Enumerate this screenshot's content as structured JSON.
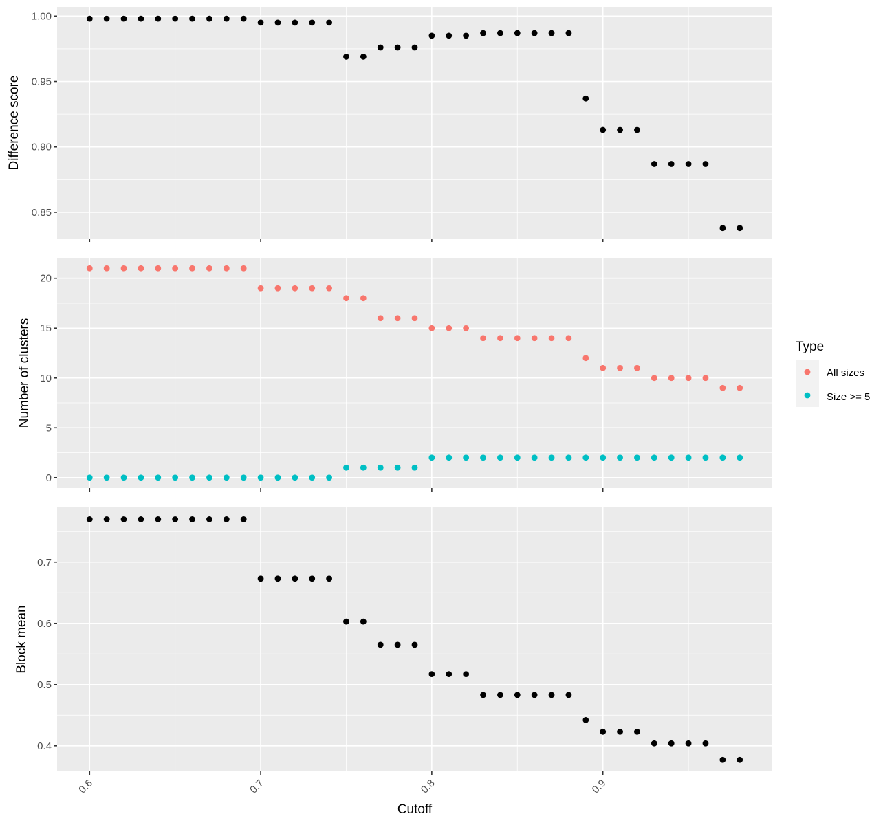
{
  "chart_data": [
    {
      "type": "scatter",
      "panel": "top",
      "ylabel": "Difference score",
      "ylim": [
        0.83,
        1.007
      ],
      "yticks": [
        0.85,
        0.9,
        0.95,
        1.0
      ],
      "ytick_labels": [
        "0.85",
        "0.90",
        "0.95",
        "1.00"
      ],
      "color": "#000000",
      "series": [
        {
          "x": [
            0.6,
            0.61,
            0.62,
            0.63,
            0.64,
            0.65,
            0.66,
            0.67,
            0.68,
            0.69,
            0.7,
            0.71,
            0.72,
            0.73,
            0.74,
            0.75,
            0.76,
            0.77,
            0.78,
            0.79,
            0.8,
            0.81,
            0.82,
            0.83,
            0.84,
            0.85,
            0.86,
            0.87,
            0.88,
            0.89,
            0.9,
            0.91,
            0.92,
            0.93,
            0.94,
            0.95,
            0.96,
            0.97,
            0.98
          ],
          "y": [
            0.998,
            0.998,
            0.998,
            0.998,
            0.998,
            0.998,
            0.998,
            0.998,
            0.998,
            0.998,
            0.995,
            0.995,
            0.995,
            0.995,
            0.995,
            0.969,
            0.969,
            0.976,
            0.976,
            0.976,
            0.985,
            0.985,
            0.985,
            0.987,
            0.987,
            0.987,
            0.987,
            0.987,
            0.987,
            0.937,
            0.913,
            0.913,
            0.913,
            0.887,
            0.887,
            0.887,
            0.887,
            0.838,
            0.838
          ]
        }
      ]
    },
    {
      "type": "scatter",
      "panel": "middle",
      "ylabel": "Number of clusters",
      "ylim": [
        -1.05,
        22.05
      ],
      "yticks": [
        0,
        5,
        10,
        15,
        20
      ],
      "ytick_labels": [
        "0",
        "5",
        "10",
        "15",
        "20"
      ],
      "legend": {
        "title": "Type",
        "placement": "right"
      },
      "series": [
        {
          "name": "All sizes",
          "color": "#F8766D",
          "x": [
            0.6,
            0.61,
            0.62,
            0.63,
            0.64,
            0.65,
            0.66,
            0.67,
            0.68,
            0.69,
            0.7,
            0.71,
            0.72,
            0.73,
            0.74,
            0.75,
            0.76,
            0.77,
            0.78,
            0.79,
            0.8,
            0.81,
            0.82,
            0.83,
            0.84,
            0.85,
            0.86,
            0.87,
            0.88,
            0.89,
            0.9,
            0.91,
            0.92,
            0.93,
            0.94,
            0.95,
            0.96,
            0.97,
            0.98
          ],
          "y": [
            21,
            21,
            21,
            21,
            21,
            21,
            21,
            21,
            21,
            21,
            19,
            19,
            19,
            19,
            19,
            18,
            18,
            16,
            16,
            16,
            15,
            15,
            15,
            14,
            14,
            14,
            14,
            14,
            14,
            12,
            11,
            11,
            11,
            10,
            10,
            10,
            10,
            9,
            9
          ]
        },
        {
          "name": "Size >= 5",
          "color": "#00BFC4",
          "x": [
            0.6,
            0.61,
            0.62,
            0.63,
            0.64,
            0.65,
            0.66,
            0.67,
            0.68,
            0.69,
            0.7,
            0.71,
            0.72,
            0.73,
            0.74,
            0.75,
            0.76,
            0.77,
            0.78,
            0.79,
            0.8,
            0.81,
            0.82,
            0.83,
            0.84,
            0.85,
            0.86,
            0.87,
            0.88,
            0.89,
            0.9,
            0.91,
            0.92,
            0.93,
            0.94,
            0.95,
            0.96,
            0.97,
            0.98
          ],
          "y": [
            0,
            0,
            0,
            0,
            0,
            0,
            0,
            0,
            0,
            0,
            0,
            0,
            0,
            0,
            0,
            1,
            1,
            1,
            1,
            1,
            2,
            2,
            2,
            2,
            2,
            2,
            2,
            2,
            2,
            2,
            2,
            2,
            2,
            2,
            2,
            2,
            2,
            2,
            2
          ]
        }
      ]
    },
    {
      "type": "scatter",
      "panel": "bottom",
      "ylabel": "Block mean",
      "xlabel": "Cutoff",
      "ylim": [
        0.3582,
        0.7896
      ],
      "yticks": [
        0.4,
        0.5,
        0.6,
        0.7
      ],
      "ytick_labels": [
        "0.4",
        "0.5",
        "0.6",
        "0.7"
      ],
      "color": "#000000",
      "series": [
        {
          "x": [
            0.6,
            0.61,
            0.62,
            0.63,
            0.64,
            0.65,
            0.66,
            0.67,
            0.68,
            0.69,
            0.7,
            0.71,
            0.72,
            0.73,
            0.74,
            0.75,
            0.76,
            0.77,
            0.78,
            0.79,
            0.8,
            0.81,
            0.82,
            0.83,
            0.84,
            0.85,
            0.86,
            0.87,
            0.88,
            0.89,
            0.9,
            0.91,
            0.92,
            0.93,
            0.94,
            0.95,
            0.96,
            0.97,
            0.98
          ],
          "y": [
            0.77,
            0.77,
            0.77,
            0.77,
            0.77,
            0.77,
            0.77,
            0.77,
            0.77,
            0.77,
            0.673,
            0.673,
            0.673,
            0.673,
            0.673,
            0.603,
            0.603,
            0.565,
            0.565,
            0.565,
            0.517,
            0.517,
            0.517,
            0.483,
            0.483,
            0.483,
            0.483,
            0.483,
            0.483,
            0.442,
            0.423,
            0.423,
            0.423,
            0.404,
            0.404,
            0.404,
            0.404,
            0.377,
            0.377
          ]
        }
      ]
    }
  ],
  "x_axis": {
    "label": "Cutoff",
    "xlim": [
      0.581,
      0.999
    ],
    "ticks": [
      0.6,
      0.7,
      0.8,
      0.9
    ],
    "tick_labels": [
      "0.6",
      "0.7",
      "0.8",
      "0.9"
    ],
    "tick_label_rotation": "-45deg"
  },
  "legend": {
    "title": "Type",
    "items": [
      {
        "label": "All sizes",
        "color": "#F8766D"
      },
      {
        "label": "Size >= 5",
        "color": "#00BFC4"
      }
    ]
  },
  "style": {
    "panel_background": "#EBEBEB",
    "grid_color": "#FFFFFF",
    "grid": true
  }
}
